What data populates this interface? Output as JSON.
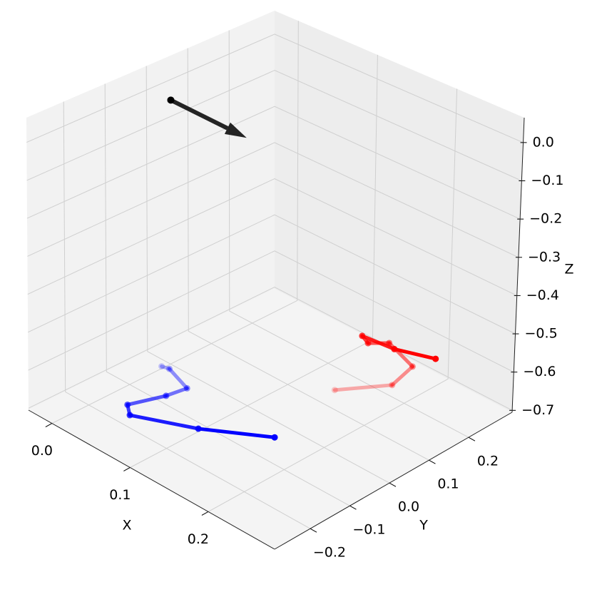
{
  "chart_data": {
    "type": "line3d",
    "xlabel": "X",
    "ylabel": "Y",
    "zlabel": "Z",
    "xlim": [
      -0.03,
      0.285
    ],
    "ylim": [
      -0.29,
      0.31
    ],
    "zlim": [
      -0.705,
      0.065
    ],
    "xticks": [
      {
        "value": 0,
        "label": "0.0"
      },
      0.1,
      0.2
    ],
    "yticks": [
      {
        "value": -0.2,
        "label": "−0.2"
      },
      {
        "value": -0.1,
        "label": "−0.1"
      },
      {
        "value": 0,
        "label": "0.0"
      },
      0.1,
      0.2
    ],
    "zticks": [
      {
        "value": 0,
        "label": "0.0"
      },
      {
        "value": -0.1,
        "label": "−0.1"
      },
      {
        "value": -0.2,
        "label": "−0.2"
      },
      {
        "value": -0.3,
        "label": "−0.3"
      },
      {
        "value": -0.4,
        "label": "−0.4"
      },
      {
        "value": -0.5,
        "label": "−0.5"
      },
      {
        "value": -0.6,
        "label": "−0.6"
      },
      {
        "value": -0.7,
        "label": "−0.7"
      }
    ],
    "grid": true,
    "series": [
      {
        "color": "#0000ff",
        "style": "fading",
        "x": [
          0.015,
          0.023,
          0.058,
          0.054,
          0.041,
          0.055,
          0.114,
          0.173
        ],
        "y": [
          -0.05,
          -0.046,
          -0.069,
          -0.113,
          -0.183,
          -0.204,
          -0.148,
          -0.072
        ],
        "z": [
          -0.667,
          -0.667,
          -0.667,
          -0.667,
          -0.667,
          -0.667,
          -0.667,
          -0.667
        ]
      },
      {
        "color": "#ff0000",
        "style": "fading",
        "x": [
          0.173,
          0.205,
          0.196,
          0.151,
          0.137,
          0.124,
          0.162,
          0.202
        ],
        "y": [
          0.077,
          0.159,
          0.227,
          0.254,
          0.228,
          0.238,
          0.246,
          0.273
        ],
        "z": [
          -0.628,
          -0.628,
          -0.628,
          -0.628,
          -0.628,
          -0.628,
          -0.628,
          -0.628
        ]
      },
      {
        "color": "#000000",
        "style": "arrow",
        "x": [
          -0.027,
          0.072
        ],
        "y": [
          0.053,
          0.048
        ],
        "z": [
          -0.05,
          -0.05
        ]
      }
    ]
  }
}
